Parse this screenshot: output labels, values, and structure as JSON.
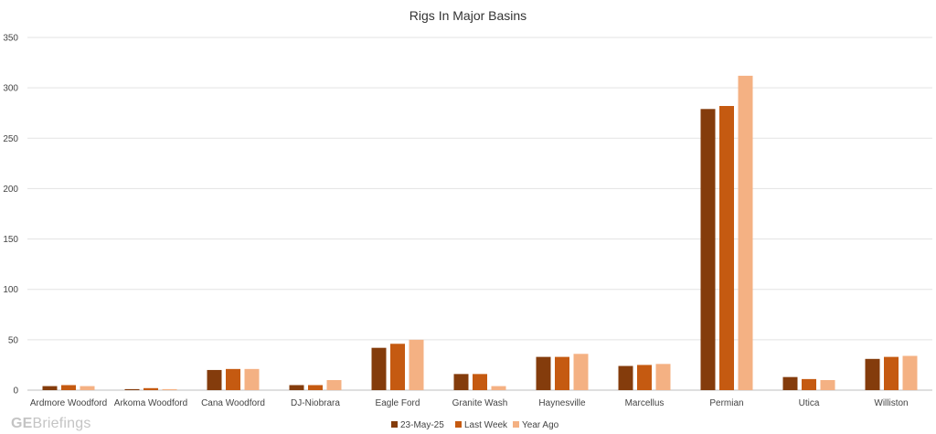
{
  "chart_data": {
    "type": "bar",
    "title": "Rigs In Major Basins",
    "categories": [
      "Ardmore Woodford",
      "Arkoma Woodford",
      "Cana Woodford",
      "DJ-Niobrara",
      "Eagle Ford",
      "Granite Wash",
      "Haynesville",
      "Marcellus",
      "Permian",
      "Utica",
      "Williston"
    ],
    "series": [
      {
        "name": "23-May-25",
        "color": "#843c0c",
        "values": [
          4,
          1,
          20,
          5,
          42,
          16,
          33,
          24,
          279,
          13,
          31
        ]
      },
      {
        "name": "Last Week",
        "color": "#c55a11",
        "values": [
          5,
          2,
          21,
          5,
          46,
          16,
          33,
          25,
          282,
          11,
          33
        ]
      },
      {
        "name": "Year Ago",
        "color": "#f4b183",
        "values": [
          4,
          1,
          21,
          10,
          50,
          4,
          36,
          26,
          312,
          10,
          34
        ]
      }
    ],
    "ylim": [
      0,
      350
    ],
    "yticks": [
      0,
      50,
      100,
      150,
      200,
      250,
      300,
      350
    ],
    "grid": true,
    "legend_position": "bottom"
  },
  "watermark": {
    "prefix": "GE",
    "suffix": "Briefings"
  }
}
